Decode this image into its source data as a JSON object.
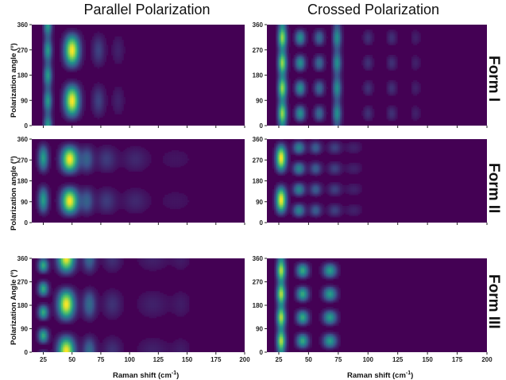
{
  "columns": [
    "Parallel Polarization",
    "Crossed Polarization"
  ],
  "rows": [
    "Form I",
    "Form II",
    "Form III"
  ],
  "ylabels": [
    "Polarization angle (º)",
    "Polarization angle (º)",
    "Polarization Angle (º)"
  ],
  "xlabel_text": "Raman shift (cm",
  "xlabel_sup": "-1",
  "xlabel_close": ")",
  "colors": {
    "background": "#440154",
    "colormap": [
      "#440154",
      "#3b528b",
      "#21918c",
      "#5ec962",
      "#fde725"
    ]
  },
  "chart_data": [
    {
      "type": "heatmap",
      "form": "Form I",
      "polarization": "Parallel Polarization",
      "xlim": [
        15,
        200
      ],
      "ylim": [
        0,
        360
      ],
      "xticks": [
        25,
        50,
        75,
        100,
        125,
        150,
        175,
        200
      ],
      "yticks": [
        0,
        90,
        180,
        270,
        360
      ],
      "bands": [
        {
          "x": 29,
          "amp": 0.55,
          "w": 2.5,
          "mod": "dual",
          "phase": 90
        },
        {
          "x": 50,
          "amp": 1.0,
          "w": 4.5,
          "mod": "cos2",
          "phase": 90
        },
        {
          "x": 73,
          "amp": 0.2,
          "w": 4,
          "mod": "cos2",
          "phase": 90
        },
        {
          "x": 90,
          "amp": 0.1,
          "w": 4,
          "mod": "cos2",
          "phase": 90
        }
      ]
    },
    {
      "type": "heatmap",
      "form": "Form I",
      "polarization": "Crossed Polarization",
      "xlim": [
        15,
        200
      ],
      "ylim": [
        0,
        360
      ],
      "xticks": [
        25,
        50,
        75,
        100,
        125,
        150,
        175,
        200
      ],
      "yticks": [
        0,
        90,
        180,
        270,
        360
      ],
      "bands": [
        {
          "x": 28,
          "amp": 0.85,
          "w": 2.5,
          "mod": "dual",
          "phase": 45
        },
        {
          "x": 43,
          "amp": 0.5,
          "w": 3,
          "mod": "sin2",
          "phase": 0
        },
        {
          "x": 59,
          "amp": 0.35,
          "w": 3,
          "mod": "sin2",
          "phase": 0
        },
        {
          "x": 74,
          "amp": 0.5,
          "w": 2.5,
          "mod": "dual",
          "phase": 45
        },
        {
          "x": 100,
          "amp": 0.15,
          "w": 3,
          "mod": "sin2",
          "phase": 0
        },
        {
          "x": 120,
          "amp": 0.15,
          "w": 3,
          "mod": "sin2",
          "phase": 0
        },
        {
          "x": 140,
          "amp": 0.1,
          "w": 3,
          "mod": "sin2",
          "phase": 0
        }
      ]
    },
    {
      "type": "heatmap",
      "form": "Form II",
      "polarization": "Parallel Polarization",
      "xlim": [
        15,
        200
      ],
      "ylim": [
        0,
        360
      ],
      "xticks": [
        25,
        50,
        75,
        100,
        125,
        150,
        175,
        200
      ],
      "yticks": [
        0,
        90,
        180,
        270,
        360
      ],
      "bands": [
        {
          "x": 25,
          "amp": 0.55,
          "w": 3,
          "mod": "cos2",
          "phase": 100
        },
        {
          "x": 48,
          "amp": 1.0,
          "w": 5,
          "mod": "cos2",
          "phase": 95
        },
        {
          "x": 63,
          "amp": 0.3,
          "w": 4,
          "mod": "cos2",
          "phase": 95
        },
        {
          "x": 80,
          "amp": 0.18,
          "w": 6,
          "mod": "cos2",
          "phase": 95
        },
        {
          "x": 105,
          "amp": 0.12,
          "w": 8,
          "mod": "cos2",
          "phase": 95
        },
        {
          "x": 140,
          "amp": 0.06,
          "w": 12,
          "mod": "cos2",
          "phase": 95
        }
      ]
    },
    {
      "type": "heatmap",
      "form": "Form II",
      "polarization": "Crossed Polarization",
      "xlim": [
        15,
        200
      ],
      "ylim": [
        0,
        360
      ],
      "xticks": [
        25,
        50,
        75,
        100,
        125,
        150,
        175,
        200
      ],
      "yticks": [
        0,
        90,
        180,
        270,
        360
      ],
      "bands": [
        {
          "x": 27,
          "amp": 1.0,
          "w": 3,
          "mod": "cos2",
          "phase": 100
        },
        {
          "x": 42,
          "amp": 0.45,
          "w": 3.5,
          "mod": "sin2",
          "phase": 10
        },
        {
          "x": 56,
          "amp": 0.3,
          "w": 3.5,
          "mod": "sin2",
          "phase": 10
        },
        {
          "x": 72,
          "amp": 0.2,
          "w": 4,
          "mod": "sin2",
          "phase": 10
        },
        {
          "x": 88,
          "amp": 0.1,
          "w": 5,
          "mod": "sin2",
          "phase": 10
        }
      ]
    },
    {
      "type": "heatmap",
      "form": "Form III",
      "polarization": "Parallel Polarization",
      "xlim": [
        15,
        200
      ],
      "ylim": [
        0,
        360
      ],
      "xticks": [
        25,
        50,
        75,
        100,
        125,
        150,
        175,
        200
      ],
      "yticks": [
        0,
        90,
        180,
        270,
        360
      ],
      "bands": [
        {
          "x": 25,
          "amp": 0.6,
          "w": 3,
          "mod": "sin2",
          "phase": 20
        },
        {
          "x": 45,
          "amp": 1.0,
          "w": 5,
          "mod": "cos2",
          "phase": 5
        },
        {
          "x": 65,
          "amp": 0.35,
          "w": 4,
          "mod": "cos2",
          "phase": 5
        },
        {
          "x": 85,
          "amp": 0.15,
          "w": 6,
          "mod": "cos2",
          "phase": 5
        },
        {
          "x": 120,
          "amp": 0.1,
          "w": 10,
          "mod": "cos2",
          "phase": 5
        },
        {
          "x": 145,
          "amp": 0.08,
          "w": 6,
          "mod": "cos2",
          "phase": 5
        }
      ]
    },
    {
      "type": "heatmap",
      "form": "Form III",
      "polarization": "Crossed Polarization",
      "xlim": [
        15,
        200
      ],
      "ylim": [
        0,
        360
      ],
      "xticks": [
        25,
        50,
        75,
        100,
        125,
        150,
        175,
        200
      ],
      "yticks": [
        0,
        90,
        180,
        270,
        360
      ],
      "bands": [
        {
          "x": 27,
          "amp": 0.9,
          "w": 2.5,
          "mod": "dual",
          "phase": 45
        },
        {
          "x": 45,
          "amp": 0.6,
          "w": 3.5,
          "mod": "sin2",
          "phase": 0
        },
        {
          "x": 68,
          "amp": 0.55,
          "w": 4,
          "mod": "sin2",
          "phase": 0
        }
      ]
    }
  ]
}
